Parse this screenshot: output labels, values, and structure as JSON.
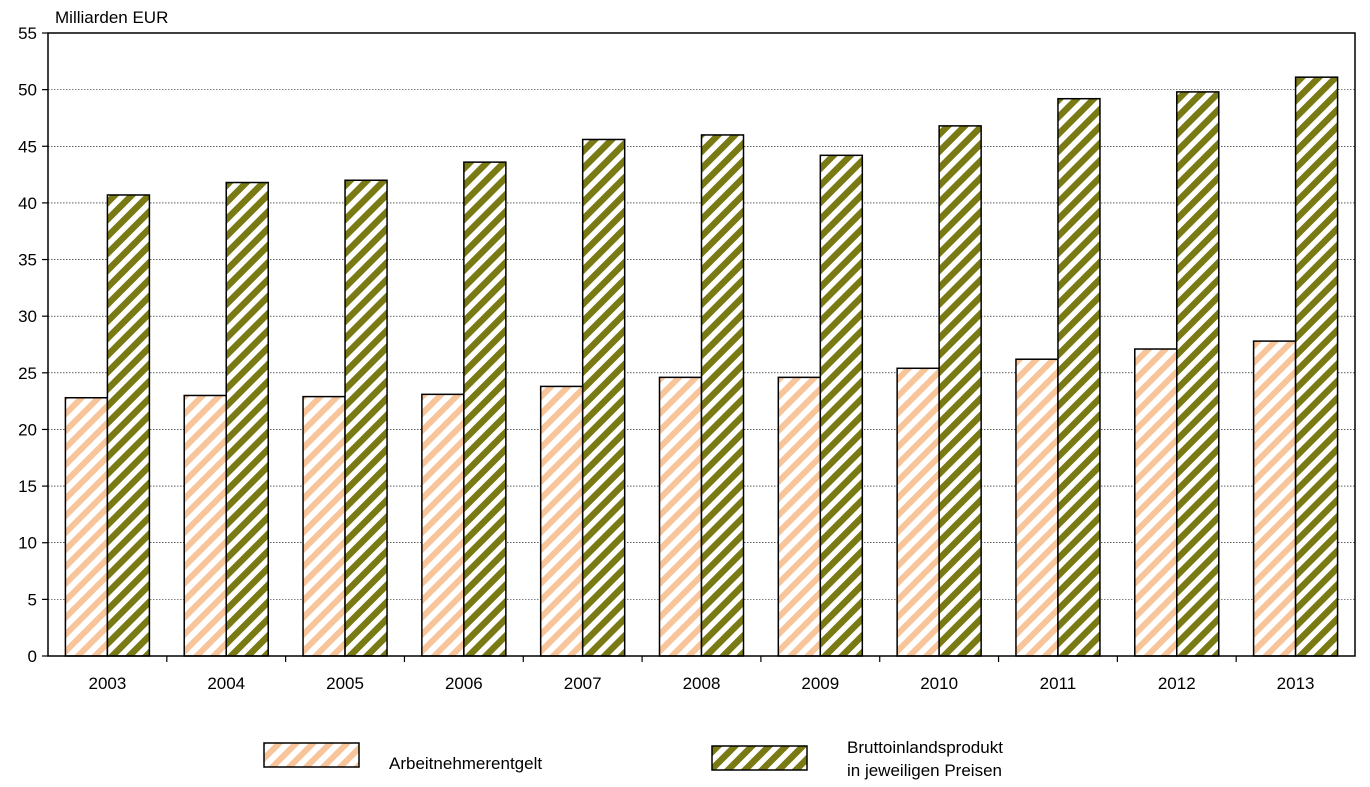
{
  "chart_data": {
    "type": "bar",
    "ylabel": "Milliarden EUR",
    "ylim": [
      0,
      55
    ],
    "ytick_step": 5,
    "grid": true,
    "legend_position": "bottom",
    "categories": [
      "2003",
      "2004",
      "2005",
      "2006",
      "2007",
      "2008",
      "2009",
      "2010",
      "2011",
      "2012",
      "2013"
    ],
    "series": [
      {
        "name": "Arbeitnehmerentgelt",
        "values": [
          22.8,
          23.0,
          22.9,
          23.1,
          23.8,
          24.6,
          24.6,
          25.4,
          26.2,
          27.1,
          27.8
        ],
        "color": "#f8c49a"
      },
      {
        "name": "Bruttoinlandsprodukt in jeweiligen Preisen",
        "legend_lines": [
          "Bruttoinlandsprodukt",
          "in jeweiligen Preisen"
        ],
        "values": [
          40.7,
          41.8,
          42.0,
          43.6,
          45.6,
          46.0,
          44.2,
          46.8,
          49.2,
          49.8,
          51.1
        ],
        "color": "#7a7a14"
      }
    ]
  }
}
